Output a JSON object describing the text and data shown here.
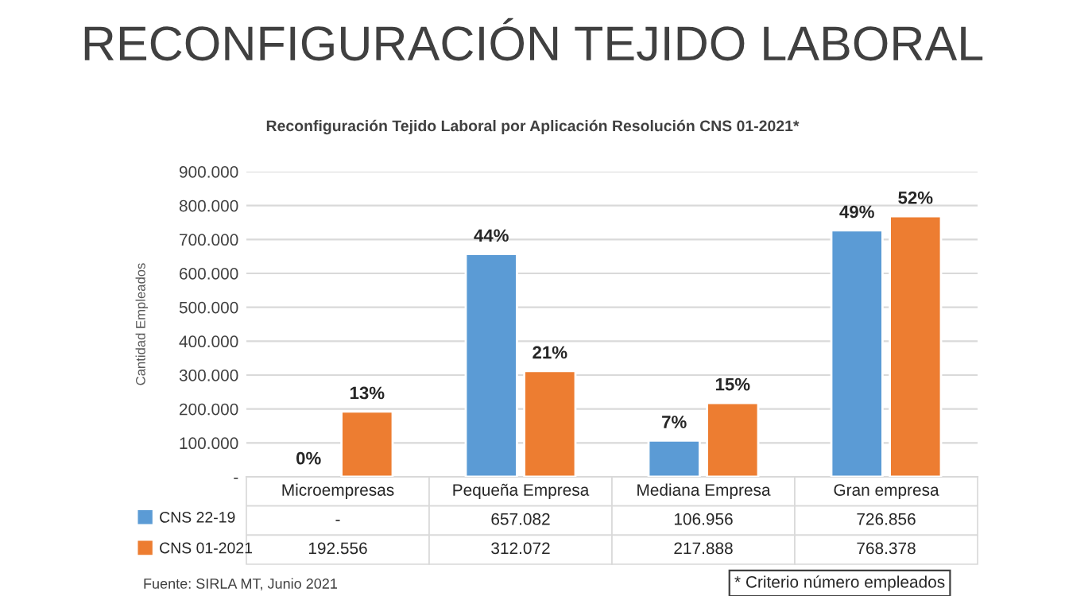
{
  "chart_data": {
    "type": "bar",
    "title": "RECONFIGURACIÓN TEJIDO LABORAL",
    "subtitle": "Reconfiguración Tejido Laboral por Aplicación Resolución CNS 01-2021*",
    "ylabel": "Cantidad Empleados",
    "categories": [
      "Microempresas",
      "Pequeña Empresa",
      "Mediana Empresa",
      "Gran empresa"
    ],
    "series": [
      {
        "name": "CNS 22-19",
        "color": "#5b9bd5",
        "values": [
          null,
          657082,
          106956,
          726856
        ],
        "value_labels": [
          "-",
          "657.082",
          "106.956",
          "726.856"
        ]
      },
      {
        "name": "CNS 01-2021",
        "color": "#ed7d31",
        "values": [
          192556,
          312072,
          217888,
          768378
        ],
        "value_labels": [
          "192.556",
          "312.072",
          "217.888",
          "768.378"
        ]
      }
    ],
    "ylim": [
      0,
      900000
    ],
    "yticks": [
      {
        "value": 0,
        "label": "-"
      },
      {
        "value": 100000,
        "label": "100.000"
      },
      {
        "value": 200000,
        "label": "200.000"
      },
      {
        "value": 300000,
        "label": "300.000"
      },
      {
        "value": 400000,
        "label": "400.000"
      },
      {
        "value": 500000,
        "label": "500.000"
      },
      {
        "value": 600000,
        "label": "600.000"
      },
      {
        "value": 700000,
        "label": "700.000"
      },
      {
        "value": 800000,
        "label": "800.000"
      },
      {
        "value": 900000,
        "label": "900.000"
      }
    ],
    "grid": "y",
    "legend": "bottom",
    "annotations": [
      "0%",
      "13%",
      "44%",
      "21%",
      "7%",
      "15%",
      "49%",
      "52%",
      "Fuente: SIRLA MT, Junio 2021",
      "* Criterio número empleados"
    ]
  }
}
